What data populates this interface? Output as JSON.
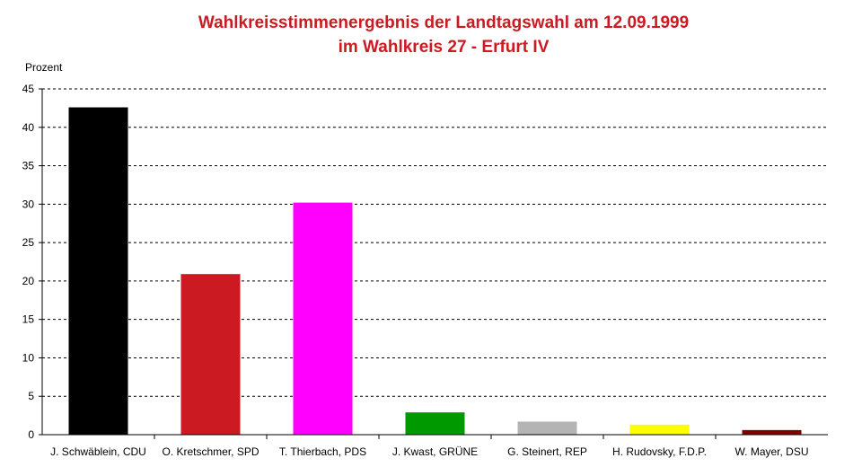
{
  "chart_data": {
    "type": "bar",
    "title": "Wahlkreisstimmenergebnis der Landtagswahl am 12.09.1999",
    "subtitle": "im Wahlkreis 27 - Erfurt IV",
    "xlabel": "",
    "ylabel": "Prozent",
    "ylim": [
      0,
      45
    ],
    "yticks": [
      0,
      5,
      10,
      15,
      20,
      25,
      30,
      35,
      40,
      45
    ],
    "grid": true,
    "categories": [
      "J. Schwäblein, CDU",
      "O. Kretschmer, SPD",
      "T. Thierbach, PDS",
      "J. Kwast, GRÜNE",
      "G. Steinert, REP",
      "H. Rudovsky, F.D.P.",
      "W. Mayer, DSU"
    ],
    "values": [
      42.6,
      20.9,
      30.2,
      2.9,
      1.7,
      1.3,
      0.6
    ],
    "colors": [
      "#000000",
      "#cc1a22",
      "#ff00ff",
      "#009900",
      "#b4b4b4",
      "#ffff00",
      "#7f0000"
    ]
  },
  "style": {
    "title_color": "#cc1a22"
  }
}
